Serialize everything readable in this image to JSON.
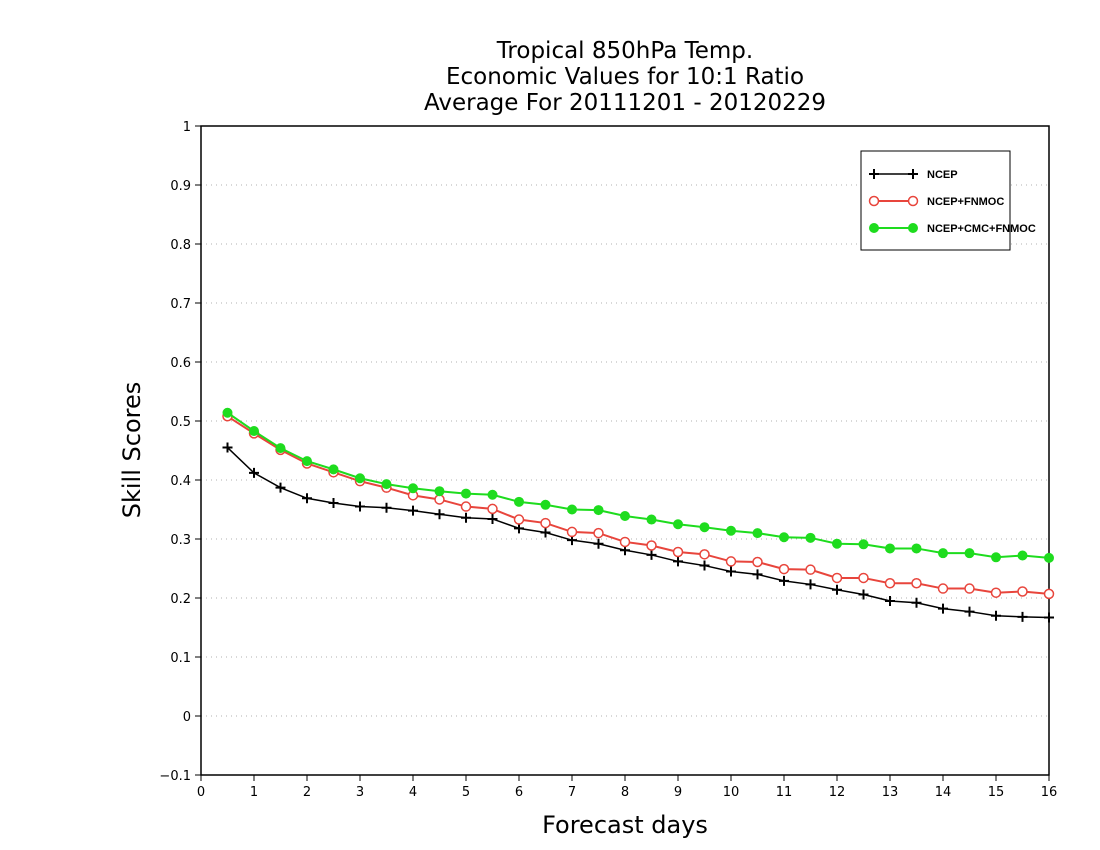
{
  "chart_data": {
    "type": "line",
    "title": [
      "Tropical 850hPa Temp.",
      "Economic Values for 10:1 Ratio",
      "Average For 20111201 - 20120229"
    ],
    "xlabel": "Forecast days",
    "ylabel": "Skill Scores",
    "xlim": [
      0,
      16
    ],
    "ylim": [
      -0.1,
      1
    ],
    "xticks": [
      "0",
      "1",
      "2",
      "3",
      "4",
      "5",
      "6",
      "7",
      "8",
      "9",
      "10",
      "11",
      "12",
      "13",
      "14",
      "15",
      "16"
    ],
    "yticks": [
      "−0.1",
      "0",
      "0.1",
      "0.2",
      "0.3",
      "0.4",
      "0.5",
      "0.6",
      "0.7",
      "0.8",
      "0.9",
      "1"
    ],
    "ytick_values": [
      -0.1,
      0,
      0.1,
      0.2,
      0.3,
      0.4,
      0.5,
      0.6,
      0.7,
      0.8,
      0.9,
      1
    ],
    "grid": "horizontal-dotted",
    "legend_position": "top-right",
    "x": [
      0.5,
      1,
      1.5,
      2,
      2.5,
      3,
      3.5,
      4,
      4.5,
      5,
      5.5,
      6,
      6.5,
      7,
      7.5,
      8,
      8.5,
      9,
      9.5,
      10,
      10.5,
      11,
      11.5,
      12,
      12.5,
      13,
      13.5,
      14,
      14.5,
      15,
      15.5,
      16
    ],
    "series": [
      {
        "name": "NCEP",
        "color": "#000000",
        "marker": "plus",
        "values": [
          0.455,
          0.412,
          0.387,
          0.369,
          0.361,
          0.355,
          0.353,
          0.348,
          0.342,
          0.336,
          0.334,
          0.318,
          0.311,
          0.298,
          0.292,
          0.281,
          0.273,
          0.262,
          0.255,
          0.245,
          0.24,
          0.229,
          0.223,
          0.214,
          0.206,
          0.195,
          0.192,
          0.182,
          0.177,
          0.17,
          0.168,
          0.167
        ]
      },
      {
        "name": "NCEP+FNMOC",
        "color": "#e8453c",
        "marker": "open-circle",
        "values": [
          0.508,
          0.479,
          0.451,
          0.428,
          0.413,
          0.398,
          0.387,
          0.374,
          0.367,
          0.355,
          0.351,
          0.333,
          0.327,
          0.312,
          0.31,
          0.295,
          0.289,
          0.278,
          0.274,
          0.262,
          0.261,
          0.249,
          0.248,
          0.234,
          0.234,
          0.225,
          0.225,
          0.216,
          0.216,
          0.209,
          0.211,
          0.207
        ]
      },
      {
        "name": "NCEP+CMC+FNMOC",
        "color": "#1edc1e",
        "marker": "filled-circle",
        "values": [
          0.514,
          0.483,
          0.454,
          0.432,
          0.418,
          0.403,
          0.393,
          0.386,
          0.381,
          0.377,
          0.375,
          0.363,
          0.358,
          0.35,
          0.349,
          0.339,
          0.333,
          0.325,
          0.32,
          0.314,
          0.31,
          0.303,
          0.302,
          0.292,
          0.291,
          0.284,
          0.284,
          0.276,
          0.276,
          0.269,
          0.272,
          0.268
        ]
      }
    ]
  }
}
